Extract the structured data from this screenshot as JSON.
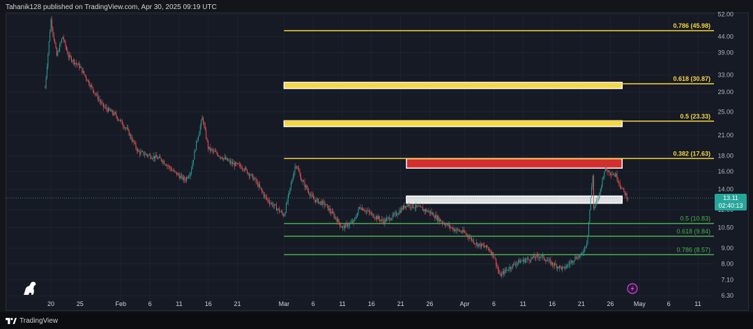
{
  "header": {
    "published": "Tahanik128 published on TradingView.com, Apr 30, 2025 09:19 UTC"
  },
  "footer": {
    "brand": "TradingView"
  },
  "price_tag": {
    "price": "13.11",
    "countdown": "02:40:13"
  },
  "colors": {
    "background": "#161a25",
    "up_candle": "#26a69a",
    "down_candle": "#ef5350",
    "fib_upper": "#f5d742",
    "fib_lower": "#4caf50",
    "zone_yellow": "#f5d742",
    "zone_red": "#d32f2f",
    "zone_white": "#e0e0e0",
    "axis_text": "#b2b5be"
  },
  "icons": [
    "dino-logo-icon",
    "lightning-icon",
    "tradingview-logo-icon"
  ],
  "chart_data": {
    "type": "candlestick",
    "y_scale": "log",
    "y_ticks": [
      "52.00",
      "44.00",
      "39.00",
      "33.00",
      "29.00",
      "25.00",
      "21.00",
      "18.00",
      "16.00",
      "14.00",
      "12.00",
      "10.50",
      "9.00",
      "8.00",
      "7.10",
      "6.30"
    ],
    "x_ticks": [
      "20",
      "25",
      "Feb",
      "6",
      "11",
      "16",
      "21",
      "Mar",
      "6",
      "11",
      "16",
      "21",
      "26",
      "Apr",
      "6",
      "11",
      "16",
      "21",
      "26",
      "May",
      "6",
      "11"
    ],
    "fib_levels": [
      {
        "label": "0.786 (45.98)",
        "value": 45.98,
        "group": "upper"
      },
      {
        "label": "0.618 (30.87)",
        "value": 30.87,
        "group": "upper"
      },
      {
        "label": "0.5 (23.33)",
        "value": 23.33,
        "group": "upper"
      },
      {
        "label": "0.382 (17.63)",
        "value": 17.63,
        "group": "upper"
      },
      {
        "label": "0.5 (10.83)",
        "value": 10.83,
        "group": "lower"
      },
      {
        "label": "0.618 (9.84)",
        "value": 9.84,
        "group": "lower"
      },
      {
        "label": "0.786 (8.57)",
        "value": 8.57,
        "group": "lower"
      }
    ],
    "zones": [
      {
        "color": "yellow",
        "low": 29.8,
        "high": 31.2,
        "start": "Mar 1",
        "end": "Apr 28"
      },
      {
        "color": "yellow",
        "low": 22.4,
        "high": 23.4,
        "start": "Mar 1",
        "end": "Apr 28"
      },
      {
        "color": "red",
        "low": 16.4,
        "high": 17.6,
        "start": "Mar 22",
        "end": "Apr 28"
      },
      {
        "color": "white",
        "low": 12.6,
        "high": 13.3,
        "start": "Mar 22",
        "end": "Apr 28"
      }
    ],
    "ohlc_path": [
      {
        "d": "Jan 19",
        "p": 30
      },
      {
        "d": "Jan 20",
        "p": 50
      },
      {
        "d": "Jan 21",
        "p": 38
      },
      {
        "d": "Jan 22",
        "p": 44
      },
      {
        "d": "Jan 23",
        "p": 38
      },
      {
        "d": "Jan 25",
        "p": 35
      },
      {
        "d": "Jan 27",
        "p": 30
      },
      {
        "d": "Jan 29",
        "p": 26
      },
      {
        "d": "Jan 31",
        "p": 24.5
      },
      {
        "d": "Feb 2",
        "p": 22
      },
      {
        "d": "Feb 4",
        "p": 18.5
      },
      {
        "d": "Feb 6",
        "p": 18
      },
      {
        "d": "Feb 8",
        "p": 17.5
      },
      {
        "d": "Feb 10",
        "p": 16
      },
      {
        "d": "Feb 12",
        "p": 15
      },
      {
        "d": "Feb 13",
        "p": 16
      },
      {
        "d": "Feb 14",
        "p": 20
      },
      {
        "d": "Feb 15",
        "p": 24
      },
      {
        "d": "Feb 16",
        "p": 19
      },
      {
        "d": "Feb 18",
        "p": 18
      },
      {
        "d": "Feb 20",
        "p": 17
      },
      {
        "d": "Feb 22",
        "p": 16.5
      },
      {
        "d": "Feb 24",
        "p": 15
      },
      {
        "d": "Feb 26",
        "p": 13
      },
      {
        "d": "Feb 28",
        "p": 12
      },
      {
        "d": "Mar 1",
        "p": 11.5
      },
      {
        "d": "Mar 3",
        "p": 17
      },
      {
        "d": "Mar 4",
        "p": 15
      },
      {
        "d": "Mar 6",
        "p": 13
      },
      {
        "d": "Mar 8",
        "p": 12.5
      },
      {
        "d": "Mar 10",
        "p": 11.2
      },
      {
        "d": "Mar 11",
        "p": 10.5
      },
      {
        "d": "Mar 13",
        "p": 11
      },
      {
        "d": "Mar 14",
        "p": 12.3
      },
      {
        "d": "Mar 16",
        "p": 11.6
      },
      {
        "d": "Mar 18",
        "p": 11
      },
      {
        "d": "Mar 20",
        "p": 11.5
      },
      {
        "d": "Mar 22",
        "p": 12.5
      },
      {
        "d": "Mar 24",
        "p": 12.2
      },
      {
        "d": "Mar 26",
        "p": 11.8
      },
      {
        "d": "Mar 28",
        "p": 11
      },
      {
        "d": "Mar 30",
        "p": 10.4
      },
      {
        "d": "Apr 1",
        "p": 10.1
      },
      {
        "d": "Apr 3",
        "p": 9.3
      },
      {
        "d": "Apr 5",
        "p": 9
      },
      {
        "d": "Apr 6",
        "p": 8.5
      },
      {
        "d": "Apr 7",
        "p": 7.3
      },
      {
        "d": "Apr 8",
        "p": 7.6
      },
      {
        "d": "Apr 10",
        "p": 8.1
      },
      {
        "d": "Apr 12",
        "p": 8.3
      },
      {
        "d": "Apr 14",
        "p": 8.5
      },
      {
        "d": "Apr 16",
        "p": 8
      },
      {
        "d": "Apr 18",
        "p": 7.7
      },
      {
        "d": "Apr 20",
        "p": 8.4
      },
      {
        "d": "Apr 21",
        "p": 8.5
      },
      {
        "d": "Apr 22",
        "p": 9.5
      },
      {
        "d": "Apr 23",
        "p": 16
      },
      {
        "d": "Apr 23",
        "p": 12
      },
      {
        "d": "Apr 24",
        "p": 13.2
      },
      {
        "d": "Apr 25",
        "p": 16.3
      },
      {
        "d": "Apr 27",
        "p": 15.5
      },
      {
        "d": "Apr 28",
        "p": 14
      },
      {
        "d": "Apr 29",
        "p": 13.1
      }
    ]
  }
}
